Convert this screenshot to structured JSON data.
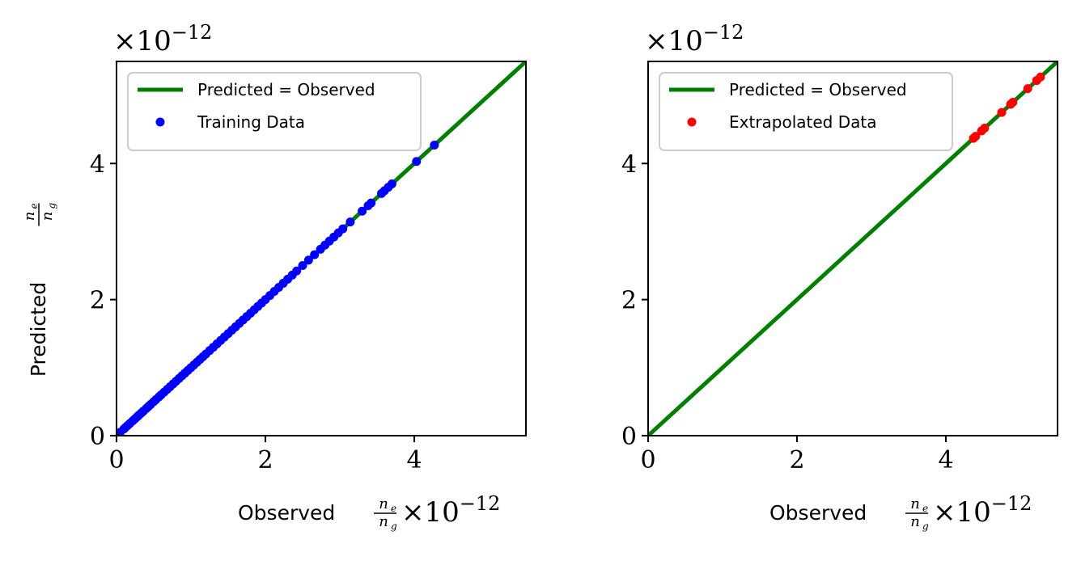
{
  "colors": {
    "identity_line": "#008000",
    "training": "#0000ff",
    "extrapolated": "#ff0000",
    "axes": "#000000"
  },
  "exponent_text": {
    "base": "×10",
    "power": "−12"
  },
  "fraction": {
    "numerator": "n",
    "numerator_sub": "e",
    "denominator": "n",
    "denominator_sub": "g"
  },
  "chart_data": [
    {
      "type": "scatter",
      "title": "",
      "xlabel": "Observed",
      "ylabel": "Predicted",
      "x_scale": "×10^-12",
      "xlim": [
        0,
        5.5
      ],
      "ylim": [
        0,
        5.5
      ],
      "xticks": [
        "0",
        "2",
        "4"
      ],
      "yticks": [
        "0",
        "2",
        "4"
      ],
      "legend": {
        "placement": "top-left",
        "entries": [
          "Predicted = Observed",
          "Training Data"
        ]
      },
      "series": [
        {
          "name": "Predicted = Observed",
          "kind": "line",
          "color": "#008000",
          "x": [
            0,
            5.5
          ],
          "y": [
            0,
            5.5
          ]
        },
        {
          "name": "Training Data",
          "kind": "points",
          "color": "#0000ff",
          "x": [
            0.05,
            0.1,
            0.12,
            0.15,
            0.18,
            0.22,
            0.25,
            0.28,
            0.3,
            0.33,
            0.36,
            0.4,
            0.43,
            0.46,
            0.5,
            0.53,
            0.57,
            0.6,
            0.64,
            0.68,
            0.72,
            0.76,
            0.8,
            0.84,
            0.88,
            0.92,
            0.96,
            1.0,
            1.04,
            1.08,
            1.12,
            1.16,
            1.2,
            1.25,
            1.3,
            1.35,
            1.4,
            1.45,
            1.5,
            1.55,
            1.6,
            1.65,
            1.7,
            1.75,
            1.8,
            1.85,
            1.9,
            1.95,
            2.0,
            2.06,
            2.12,
            2.18,
            2.24,
            2.3,
            2.36,
            2.42,
            2.5,
            2.58,
            2.66,
            2.74,
            2.8,
            2.86,
            2.92,
            2.98,
            3.04,
            3.14,
            3.3,
            3.38,
            3.42,
            3.56,
            3.6,
            3.65,
            3.7,
            4.03,
            4.27
          ],
          "y": [
            0.05,
            0.1,
            0.12,
            0.15,
            0.18,
            0.22,
            0.25,
            0.28,
            0.3,
            0.33,
            0.36,
            0.4,
            0.43,
            0.46,
            0.5,
            0.53,
            0.57,
            0.6,
            0.64,
            0.68,
            0.72,
            0.76,
            0.8,
            0.84,
            0.88,
            0.92,
            0.96,
            1.0,
            1.04,
            1.08,
            1.12,
            1.16,
            1.2,
            1.25,
            1.3,
            1.35,
            1.4,
            1.45,
            1.5,
            1.55,
            1.6,
            1.65,
            1.7,
            1.75,
            1.8,
            1.85,
            1.9,
            1.95,
            2.0,
            2.06,
            2.12,
            2.18,
            2.24,
            2.3,
            2.36,
            2.42,
            2.5,
            2.58,
            2.66,
            2.74,
            2.8,
            2.86,
            2.92,
            2.98,
            3.04,
            3.14,
            3.3,
            3.38,
            3.42,
            3.56,
            3.6,
            3.65,
            3.7,
            4.03,
            4.27
          ]
        }
      ]
    },
    {
      "type": "scatter",
      "title": "",
      "xlabel": "Observed",
      "ylabel": "",
      "x_scale": "×10^-12",
      "xlim": [
        0,
        5.5
      ],
      "ylim": [
        0,
        5.5
      ],
      "xticks": [
        "0",
        "2",
        "4"
      ],
      "yticks": [
        "0",
        "2",
        "4"
      ],
      "legend": {
        "placement": "top-left",
        "entries": [
          "Predicted = Observed",
          "Extrapolated Data"
        ]
      },
      "series": [
        {
          "name": "Predicted = Observed",
          "kind": "line",
          "color": "#008000",
          "x": [
            0,
            5.5
          ],
          "y": [
            0,
            5.5
          ]
        },
        {
          "name": "Extrapolated Data",
          "kind": "points",
          "color": "#ff0000",
          "x": [
            4.37,
            4.4,
            4.48,
            4.52,
            4.75,
            4.87,
            4.9,
            5.1,
            5.22,
            5.27
          ],
          "y": [
            4.37,
            4.4,
            4.48,
            4.52,
            4.75,
            4.87,
            4.9,
            5.1,
            5.22,
            5.27
          ]
        }
      ]
    }
  ]
}
